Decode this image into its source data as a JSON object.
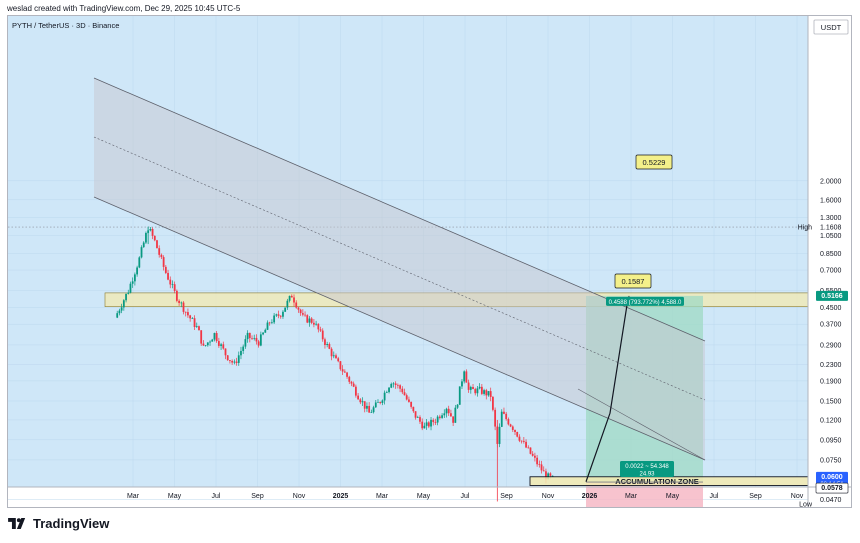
{
  "header": {
    "credit": "weslad created with TradingView.com, Dec 29, 2025 10:45 UTC-5"
  },
  "symbol": "PYTH / TetherUS · 3D · Binance",
  "brand": "TradingView",
  "chart_data": {
    "type": "candlestick",
    "currency": "USDT",
    "y_scale": "log",
    "ylim": [
      0.0265,
      2.5
    ],
    "y_ticks": [
      "2.0000",
      "1.6000",
      "1.3000",
      "1.0500",
      "0.8500",
      "0.7000",
      "0.5500",
      "0.4500",
      "0.3700",
      "0.2900",
      "0.2300",
      "0.1900",
      "0.1500",
      "0.1200",
      "0.0950",
      "0.0750",
      "0.0470",
      "0.0320",
      "0.0265"
    ],
    "x_ticks": [
      "Mar",
      "May",
      "Jul",
      "Sep",
      "Nov",
      "2025",
      "Mar",
      "May",
      "Jul",
      "Sep",
      "Nov",
      "2026",
      "Mar",
      "May",
      "Jul",
      "Sep",
      "Nov"
    ],
    "price_path": [
      [
        0.0,
        0.4
      ],
      [
        1.2,
        0.55
      ],
      [
        2.2,
        0.8
      ],
      [
        3.0,
        1.16
      ],
      [
        3.6,
        0.98
      ],
      [
        4.5,
        0.7
      ],
      [
        5.5,
        0.52
      ],
      [
        6.5,
        0.42
      ],
      [
        7.5,
        0.35
      ],
      [
        8.0,
        0.28
      ],
      [
        9.0,
        0.33
      ],
      [
        10.0,
        0.26
      ],
      [
        10.8,
        0.23
      ],
      [
        12.0,
        0.32
      ],
      [
        13.0,
        0.3
      ],
      [
        14.0,
        0.38
      ],
      [
        15.0,
        0.42
      ],
      [
        16.0,
        0.52
      ],
      [
        16.4,
        0.47
      ],
      [
        17.0,
        0.4
      ],
      [
        18.0,
        0.38
      ],
      [
        19.0,
        0.3
      ],
      [
        20.0,
        0.24
      ],
      [
        21.0,
        0.2
      ],
      [
        22.0,
        0.16
      ],
      [
        23.0,
        0.13
      ],
      [
        24.0,
        0.15
      ],
      [
        25.0,
        0.19
      ],
      [
        26.0,
        0.17
      ],
      [
        27.0,
        0.13
      ],
      [
        28.0,
        0.11
      ],
      [
        29.0,
        0.12
      ],
      [
        30.0,
        0.14
      ],
      [
        30.6,
        0.12
      ],
      [
        31.0,
        0.15
      ],
      [
        31.6,
        0.22
      ],
      [
        32.0,
        0.17
      ],
      [
        33.0,
        0.17
      ],
      [
        34.0,
        0.16
      ],
      [
        34.6,
        0.09
      ],
      [
        35.0,
        0.13
      ],
      [
        36.0,
        0.11
      ],
      [
        37.0,
        0.09
      ],
      [
        38.0,
        0.075
      ],
      [
        39.0,
        0.062
      ],
      [
        39.6,
        0.06
      ]
    ],
    "range_high": {
      "label": "High",
      "value": "1.1608",
      "price": 1.1608
    },
    "range_low": {
      "label": "Low",
      "value": "0.0394",
      "price": 0.0394
    },
    "current_price": {
      "value": "0.0600",
      "countdown": "08:14:51",
      "price": 0.06
    },
    "zone_price_label": {
      "value": "0.0578",
      "price": 0.0578
    },
    "target_price_label": {
      "value": "0.5166",
      "price": 0.5166
    },
    "stop_price_label": {
      "value": "0.0394"
    },
    "accumulation_zone": {
      "label": "ACCUMULATION ZONE",
      "low": 0.0555,
      "high": 0.0615
    },
    "supply_zone": {
      "low": 0.455,
      "high": 0.535
    },
    "targets": [
      {
        "label": "0.1587",
        "price": 0.1587
      },
      {
        "label": "0.5229",
        "price": 0.5229
      }
    ],
    "position": {
      "entry": 0.0578,
      "target": 0.5166,
      "stop": 0.0394,
      "profit_label": "0.4588 (793.772%) 4,588.0",
      "ratio_label": "0.0022 ~ 54.348",
      "ratio_value": "24.93",
      "loss_label": "0.0184 (31.834%) 184.0"
    }
  }
}
